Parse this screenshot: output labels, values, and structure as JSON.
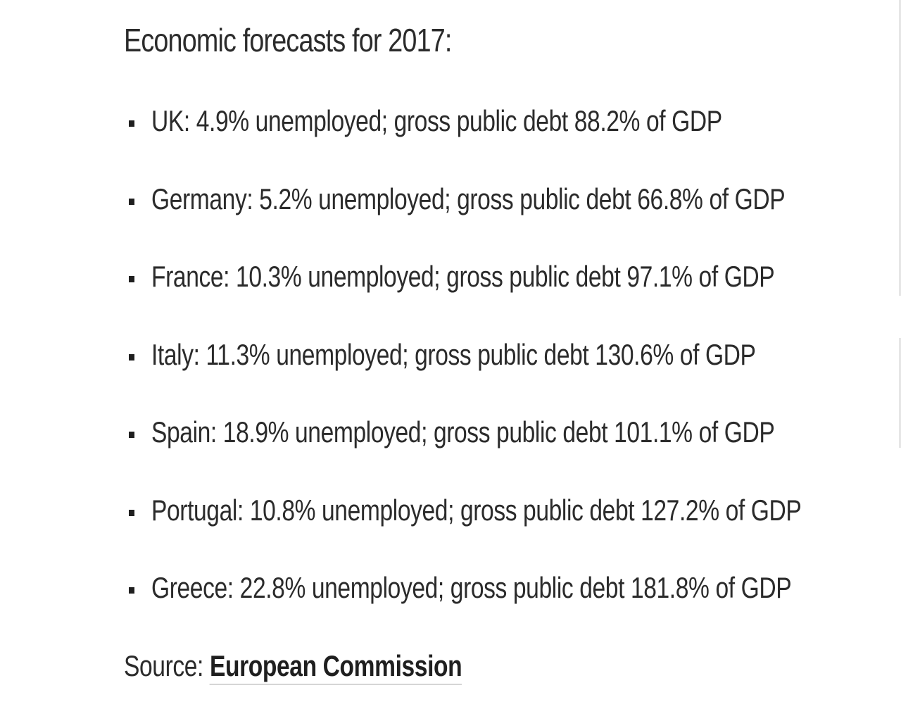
{
  "heading": "Economic forecasts for 2017:",
  "facts": [
    "UK: 4.9% unemployed; gross public debt 88.2% of GDP",
    "Germany: 5.2% unemployed; gross public debt 66.8% of GDP",
    "France: 10.3% unemployed; gross public debt 97.1% of GDP",
    "Italy: 11.3% unemployed; gross public debt 130.6% of GDP",
    "Spain: 18.9% unemployed; gross public debt 101.1% of GDP",
    "Portugal: 10.8% unemployed; gross public debt 127.2% of GDP",
    "Greece: 22.8% unemployed; gross public debt 181.8% of GDP"
  ],
  "source": {
    "label": "Source:",
    "link_text": "European Commission"
  }
}
